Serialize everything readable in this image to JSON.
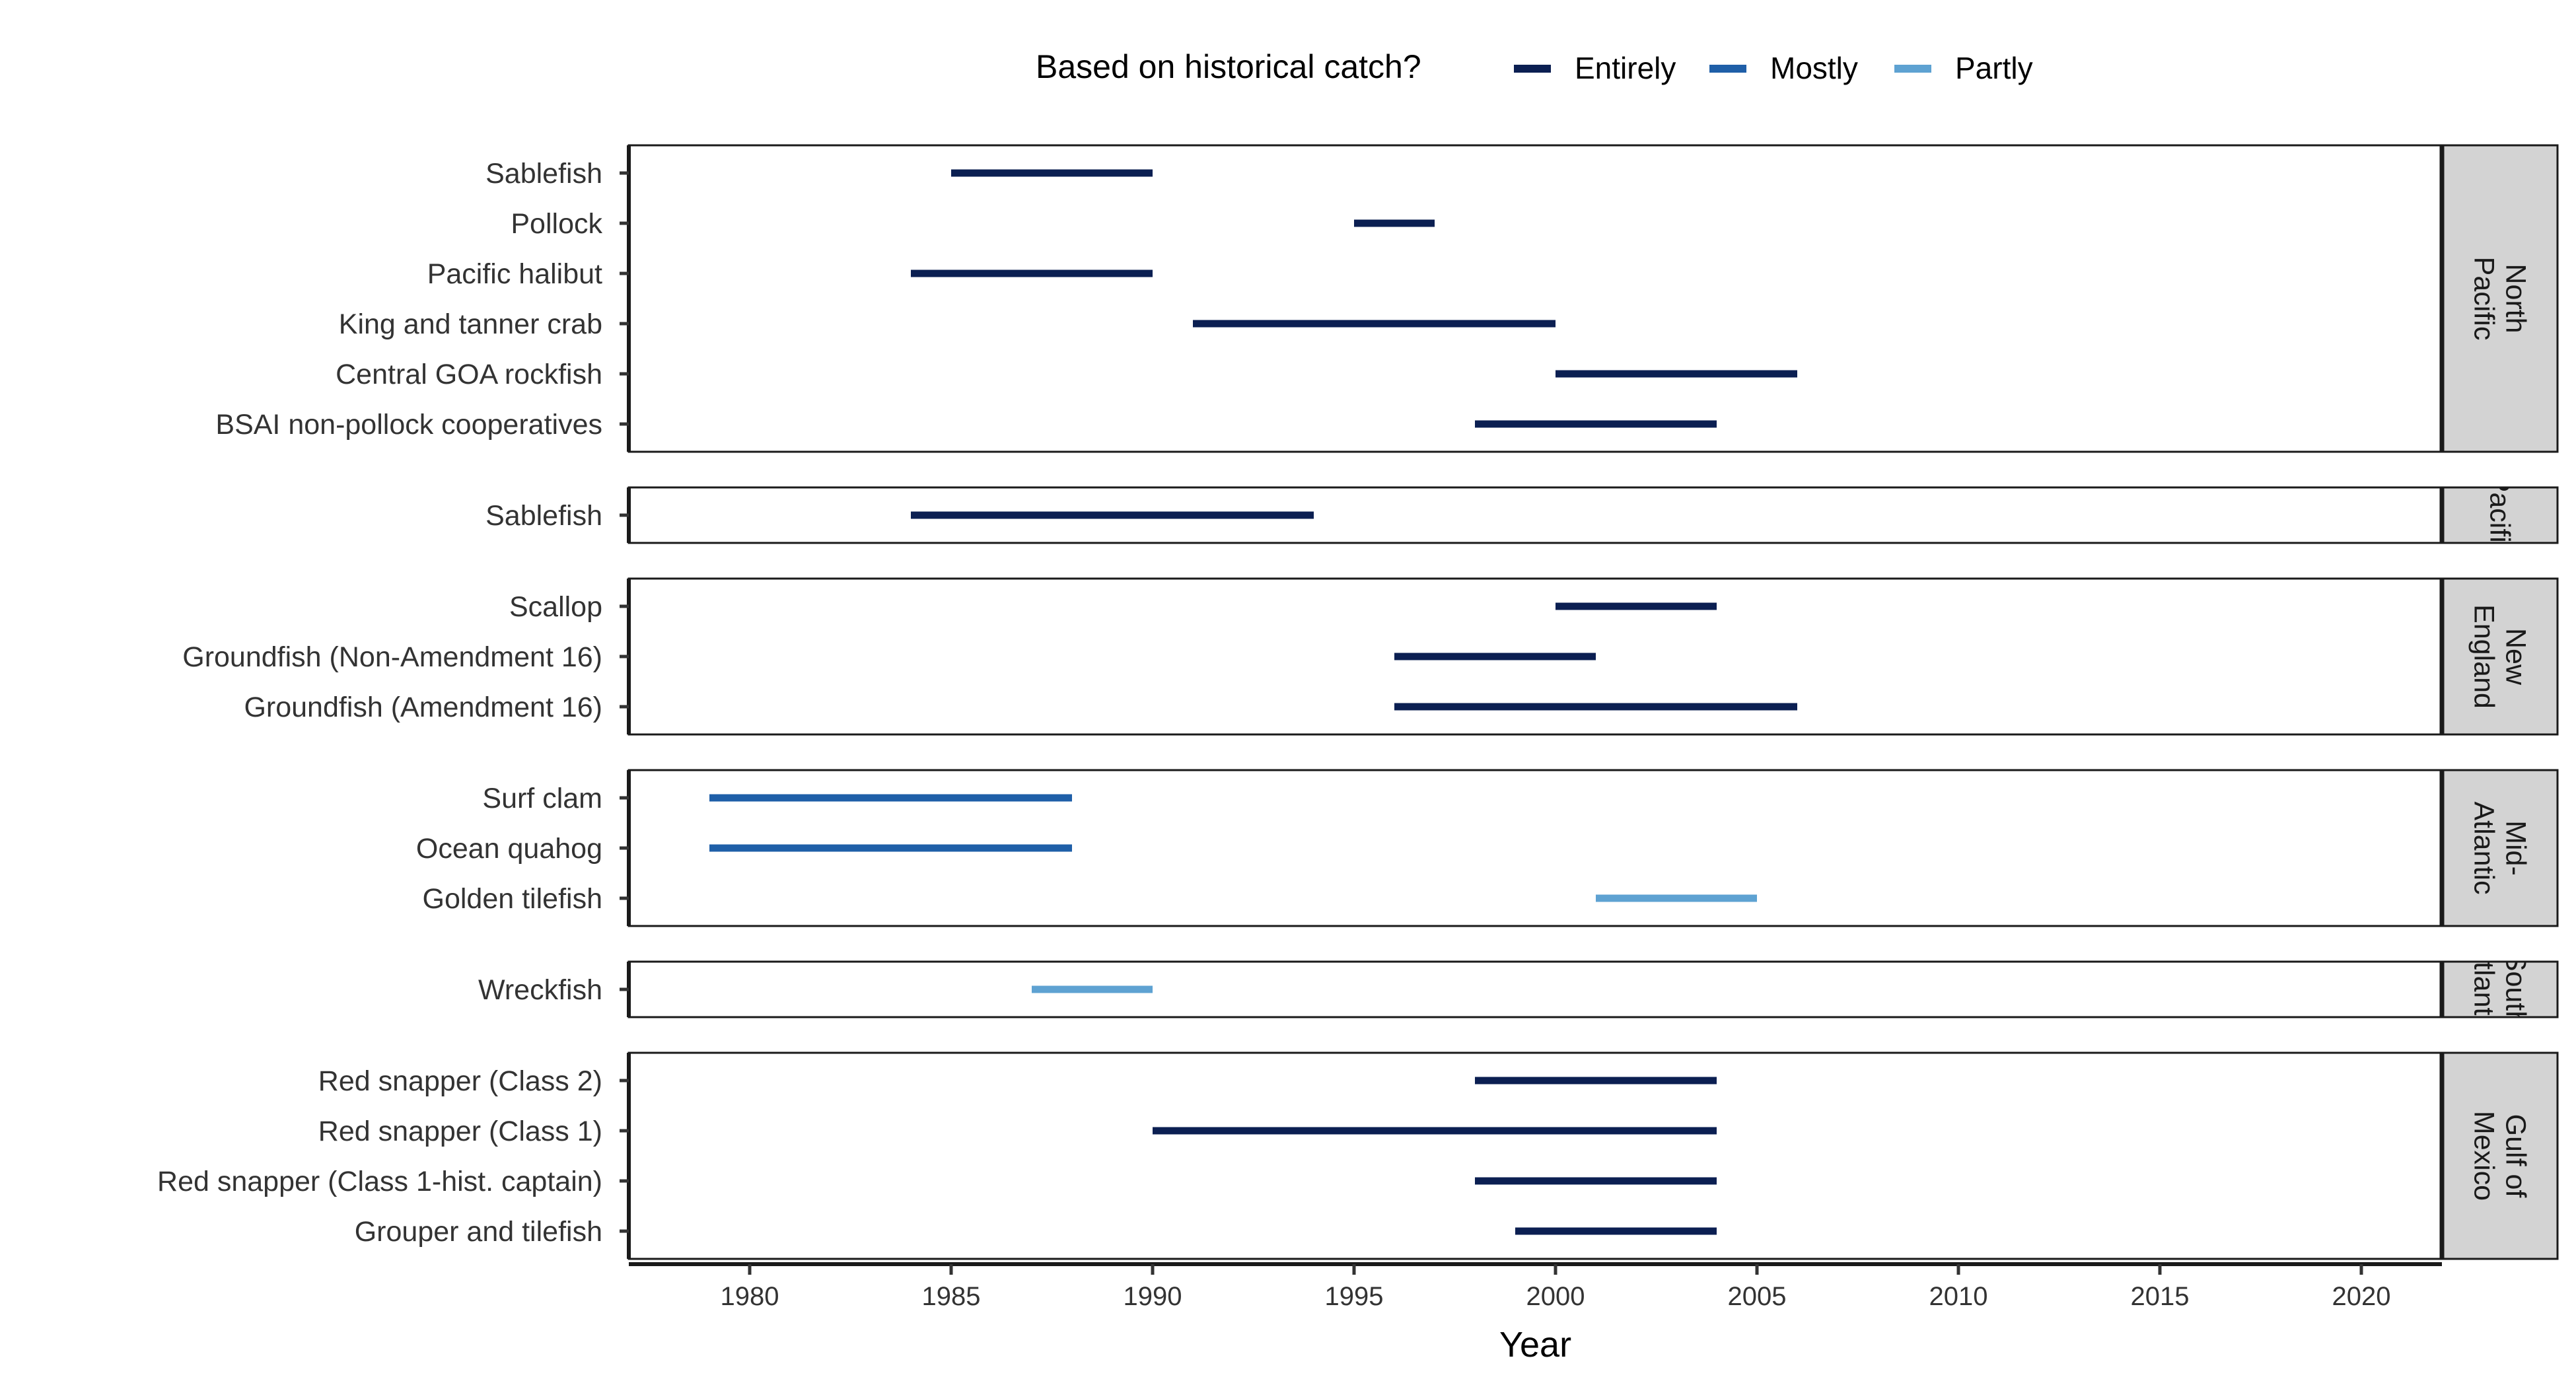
{
  "chart_data": {
    "type": "range",
    "xlabel": "Year",
    "xlim": [
      1977,
      2022
    ],
    "x_ticks": [
      1980,
      1985,
      1990,
      1995,
      2000,
      2005,
      2010,
      2015,
      2020
    ],
    "legend": {
      "title": "Based on historical catch?",
      "position": "top",
      "entries": [
        {
          "label": "Entirely",
          "color": "#0b1f52"
        },
        {
          "label": "Mostly",
          "color": "#1f5fa8"
        },
        {
          "label": "Partly",
          "color": "#5ea2d2"
        }
      ]
    },
    "panels": [
      {
        "region": "North Pacific",
        "strip_lines": [
          "North",
          "Pacific"
        ],
        "rows": [
          {
            "label": "Sablefish",
            "start": 1985,
            "end": 1990,
            "category": "Entirely"
          },
          {
            "label": "Pollock",
            "start": 1995,
            "end": 1997,
            "category": "Entirely"
          },
          {
            "label": "Pacific halibut",
            "start": 1984,
            "end": 1990,
            "category": "Entirely"
          },
          {
            "label": "King and tanner crab",
            "start": 1991,
            "end": 2000,
            "category": "Entirely"
          },
          {
            "label": "Central GOA rockfish",
            "start": 2000,
            "end": 2006,
            "category": "Entirely"
          },
          {
            "label": "BSAI non-pollock cooperatives",
            "start": 1998,
            "end": 2004,
            "category": "Entirely"
          }
        ]
      },
      {
        "region": "Pacific",
        "strip_lines": [
          "Pacific"
        ],
        "rows": [
          {
            "label": "Sablefish",
            "start": 1984,
            "end": 1994,
            "category": "Entirely"
          }
        ]
      },
      {
        "region": "New England",
        "strip_lines": [
          "New",
          "England"
        ],
        "rows": [
          {
            "label": "Scallop",
            "start": 2000,
            "end": 2004,
            "category": "Entirely"
          },
          {
            "label": "Groundfish (Non-Amendment 16)",
            "start": 1996,
            "end": 2001,
            "category": "Entirely"
          },
          {
            "label": "Groundfish (Amendment 16)",
            "start": 1996,
            "end": 2006,
            "category": "Entirely"
          }
        ]
      },
      {
        "region": "Mid-Atlantic",
        "strip_lines": [
          "Mid-",
          "Atlantic"
        ],
        "rows": [
          {
            "label": "Surf clam",
            "start": 1979,
            "end": 1988,
            "category": "Mostly"
          },
          {
            "label": "Ocean quahog",
            "start": 1979,
            "end": 1988,
            "category": "Mostly"
          },
          {
            "label": "Golden tilefish",
            "start": 2001,
            "end": 2005,
            "category": "Partly"
          }
        ]
      },
      {
        "region": "South Atlantic",
        "strip_lines": [
          "South",
          "Atlantic"
        ],
        "rows": [
          {
            "label": "Wreckfish",
            "start": 1987,
            "end": 1990,
            "category": "Partly"
          }
        ]
      },
      {
        "region": "Gulf of Mexico",
        "strip_lines": [
          "Gulf of",
          "Mexico"
        ],
        "rows": [
          {
            "label": "Red snapper (Class 2)",
            "start": 1998,
            "end": 2004,
            "category": "Entirely"
          },
          {
            "label": "Red snapper (Class 1)",
            "start": 1990,
            "end": 2004,
            "category": "Entirely"
          },
          {
            "label": "Red snapper (Class 1-hist. captain)",
            "start": 1998,
            "end": 2004,
            "category": "Entirely"
          },
          {
            "label": "Grouper and tilefish",
            "start": 1999,
            "end": 2004,
            "category": "Entirely"
          }
        ]
      }
    ]
  }
}
